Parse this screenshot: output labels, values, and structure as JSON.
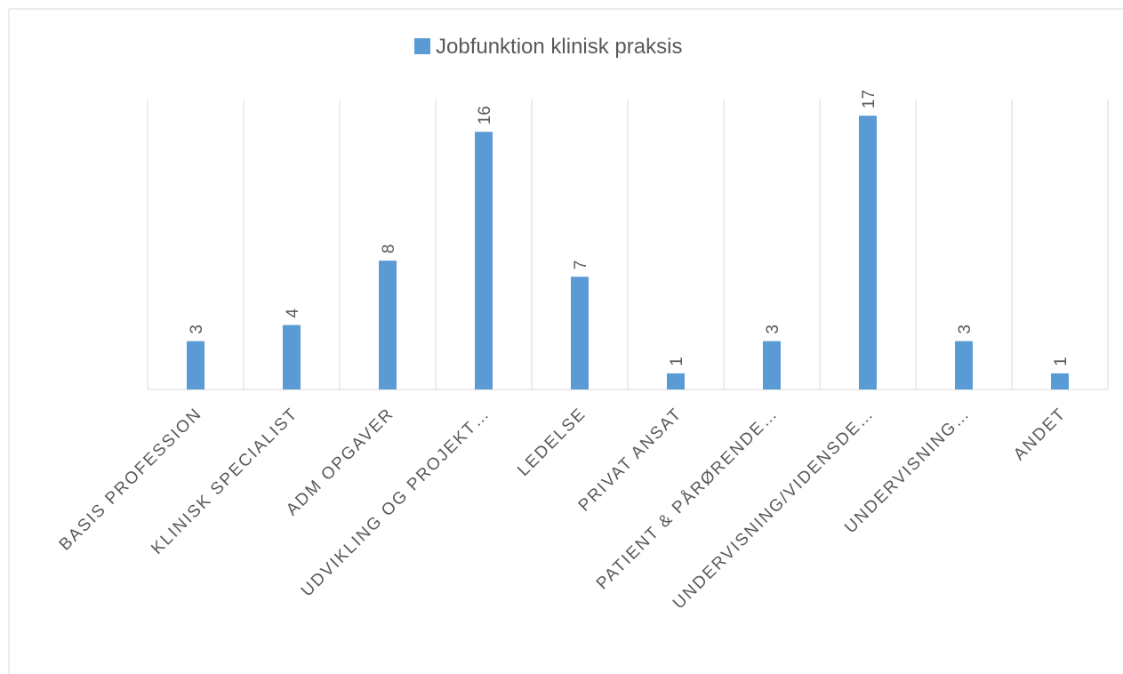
{
  "chart_data": {
    "type": "bar",
    "categories": [
      "BASIS PROFESSION",
      "KLINISK SPECIALIST",
      "ADM OPGAVER",
      "UDVIKLING OG PROJEKT…",
      "LEDELSE",
      "PRIVAT ANSAT",
      "PATIENT & PÅRØRENDE…",
      "UNDERVISNING/VIDENSDE…",
      "UNDERVISNING…",
      "ANDET"
    ],
    "series": [
      {
        "name": "Jobfunktion klinisk praksis",
        "color": "#5b9bd5",
        "values": [
          3,
          4,
          8,
          16,
          7,
          1,
          3,
          17,
          3,
          1
        ]
      }
    ],
    "ylim": [
      0,
      18
    ],
    "legend": "top"
  }
}
